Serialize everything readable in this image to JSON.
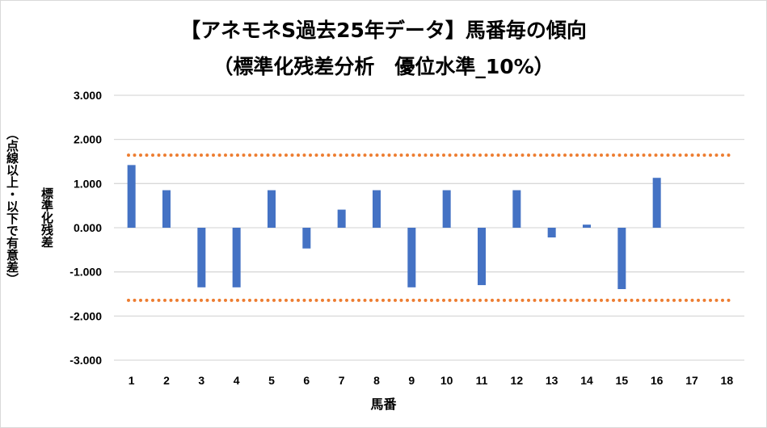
{
  "chart_data": {
    "type": "bar",
    "title": "【アネモネS過去25年データ】馬番毎の傾向",
    "subtitle": "（標準化残差分析　優位水準_10%）",
    "xlabel": "馬番",
    "ylabel": "標準化残差",
    "ylabel_note": "（点線以上・以下で有意差）",
    "categories": [
      "1",
      "2",
      "3",
      "4",
      "5",
      "6",
      "7",
      "8",
      "9",
      "10",
      "11",
      "12",
      "13",
      "14",
      "15",
      "16",
      "17",
      "18"
    ],
    "values": [
      1.42,
      0.85,
      -1.35,
      -1.35,
      0.85,
      -0.47,
      0.41,
      0.85,
      -1.35,
      0.85,
      -1.3,
      0.85,
      -0.22,
      0.07,
      -1.39,
      1.13,
      0,
      0
    ],
    "ylim": [
      -3,
      3
    ],
    "yticks": [
      "3.000",
      "2.000",
      "1.000",
      "0.000",
      "-1.000",
      "-2.000",
      "-3.000"
    ],
    "ytick_values": [
      3,
      2,
      1,
      0,
      -1,
      -2,
      -3
    ],
    "threshold": 1.645,
    "grid": true,
    "colors": {
      "bar": "#4472c4",
      "threshold": "#ed7d31",
      "grid": "#d9d9d9"
    }
  }
}
